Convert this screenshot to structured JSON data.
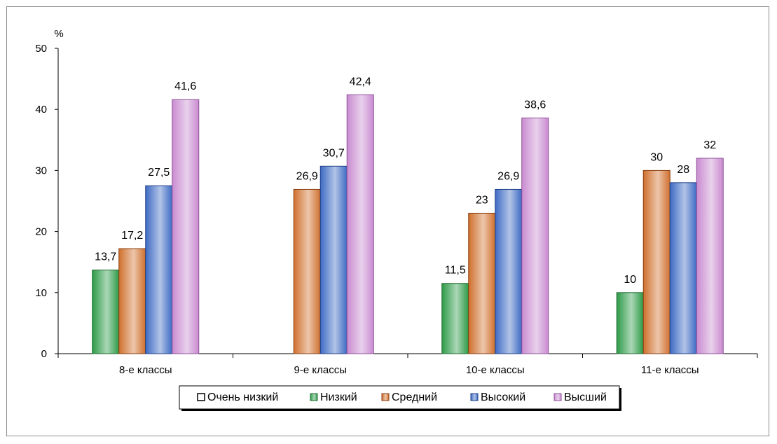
{
  "chart_data": {
    "type": "bar",
    "ylabel": "%",
    "ylim": [
      0,
      50
    ],
    "yticks": [
      0,
      10,
      20,
      30,
      40,
      50
    ],
    "grid": false,
    "legend_position": "bottom",
    "categories": [
      "8-е классы",
      "9-е классы",
      "10-е классы",
      "11-е классы"
    ],
    "series": [
      {
        "name": "Очень низкий",
        "values": [
          null,
          null,
          null,
          null
        ],
        "labels": [
          "",
          "",
          "",
          ""
        ],
        "color": "#ffffff",
        "stroke": "#000000"
      },
      {
        "name": "Низкий",
        "values": [
          13.7,
          null,
          11.5,
          10
        ],
        "labels": [
          "13,7",
          "",
          "11,5",
          "10"
        ],
        "color": "#2e9a48",
        "stroke": "#1f6b30"
      },
      {
        "name": "Средний",
        "values": [
          17.2,
          26.9,
          23,
          30
        ],
        "labels": [
          "17,2",
          "26,9",
          "23",
          "30"
        ],
        "color": "#d0702e",
        "stroke": "#8a3f12"
      },
      {
        "name": "Высокий",
        "values": [
          27.5,
          30.7,
          26.9,
          28
        ],
        "labels": [
          "27,5",
          "30,7",
          "26,9",
          "28"
        ],
        "color": "#3e6bc4",
        "stroke": "#1e3f85"
      },
      {
        "name": "Высший",
        "values": [
          41.6,
          42.4,
          38.6,
          32
        ],
        "labels": [
          "41,6",
          "42,4",
          "38,6",
          "32"
        ],
        "color": "#c98bd0",
        "stroke": "#8d4f98"
      }
    ]
  }
}
